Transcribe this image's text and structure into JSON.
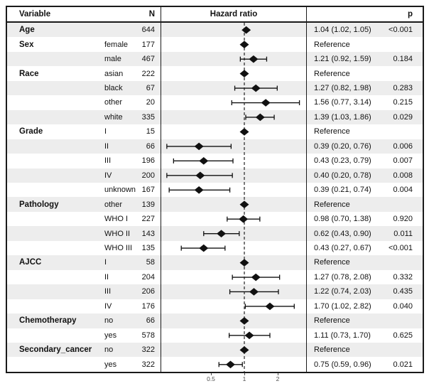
{
  "colors": {
    "row_stripe": "#ededed",
    "border": "#1a1a1a",
    "marker": "#111111",
    "reference_line": "#333333",
    "axis_text": "#4d4d4d"
  },
  "chart_data": {
    "type": "scatter",
    "variant": "forest-plot",
    "title": "Hazard ratio",
    "x_scale": "log",
    "x_ticks": [
      "0.5",
      "1",
      "2"
    ],
    "x_tick_values": [
      0.5,
      1,
      2
    ],
    "reference_line": 1,
    "legend": "none",
    "grid": false,
    "columns": {
      "variable": "Variable",
      "n": "N",
      "plot": "Hazard ratio",
      "p": "p"
    },
    "rows": [
      {
        "variable": "Age",
        "subgroup": "",
        "n": "644",
        "hr": 1.04,
        "lo": 1.02,
        "hi": 1.05,
        "label": "1.04 (1.02, 1.05)",
        "p": "<0.001",
        "is_reference": false
      },
      {
        "variable": "Sex",
        "subgroup": "female",
        "n": "177",
        "hr": 1,
        "lo": 1,
        "hi": 1,
        "label": "Reference",
        "p": "",
        "is_reference": true
      },
      {
        "variable": "",
        "subgroup": "male",
        "n": "467",
        "hr": 1.21,
        "lo": 0.92,
        "hi": 1.59,
        "label": "1.21 (0.92, 1.59)",
        "p": "0.184",
        "is_reference": false
      },
      {
        "variable": "Race",
        "subgroup": "asian",
        "n": "222",
        "hr": 1,
        "lo": 1,
        "hi": 1,
        "label": "Reference",
        "p": "",
        "is_reference": true
      },
      {
        "variable": "",
        "subgroup": "black",
        "n": "67",
        "hr": 1.27,
        "lo": 0.82,
        "hi": 1.98,
        "label": "1.27 (0.82, 1.98)",
        "p": "0.283",
        "is_reference": false
      },
      {
        "variable": "",
        "subgroup": "other",
        "n": "20",
        "hr": 1.56,
        "lo": 0.77,
        "hi": 3.14,
        "label": "1.56 (0.77, 3.14)",
        "p": "0.215",
        "is_reference": false
      },
      {
        "variable": "",
        "subgroup": "white",
        "n": "335",
        "hr": 1.39,
        "lo": 1.03,
        "hi": 1.86,
        "label": "1.39 (1.03, 1.86)",
        "p": "0.029",
        "is_reference": false
      },
      {
        "variable": "Grade",
        "subgroup": "I",
        "n": "15",
        "hr": 1,
        "lo": 1,
        "hi": 1,
        "label": "Reference",
        "p": "",
        "is_reference": true
      },
      {
        "variable": "",
        "subgroup": "II",
        "n": "66",
        "hr": 0.39,
        "lo": 0.2,
        "hi": 0.76,
        "label": "0.39 (0.20, 0.76)",
        "p": "0.006",
        "is_reference": false
      },
      {
        "variable": "",
        "subgroup": "III",
        "n": "196",
        "hr": 0.43,
        "lo": 0.23,
        "hi": 0.79,
        "label": "0.43 (0.23, 0.79)",
        "p": "0.007",
        "is_reference": false
      },
      {
        "variable": "",
        "subgroup": "IV",
        "n": "200",
        "hr": 0.4,
        "lo": 0.2,
        "hi": 0.78,
        "label": "0.40 (0.20, 0.78)",
        "p": "0.008",
        "is_reference": false
      },
      {
        "variable": "",
        "subgroup": "unknown",
        "n": "167",
        "hr": 0.39,
        "lo": 0.21,
        "hi": 0.74,
        "label": "0.39 (0.21, 0.74)",
        "p": "0.004",
        "is_reference": false
      },
      {
        "variable": "Pathology",
        "subgroup": "other",
        "n": "139",
        "hr": 1,
        "lo": 1,
        "hi": 1,
        "label": "Reference",
        "p": "",
        "is_reference": true
      },
      {
        "variable": "",
        "subgroup": "WHO I",
        "n": "227",
        "hr": 0.98,
        "lo": 0.7,
        "hi": 1.38,
        "label": "0.98 (0.70, 1.38)",
        "p": "0.920",
        "is_reference": false
      },
      {
        "variable": "",
        "subgroup": "WHO II",
        "n": "143",
        "hr": 0.62,
        "lo": 0.43,
        "hi": 0.9,
        "label": "0.62 (0.43, 0.90)",
        "p": "0.011",
        "is_reference": false
      },
      {
        "variable": "",
        "subgroup": "WHO III",
        "n": "135",
        "hr": 0.43,
        "lo": 0.27,
        "hi": 0.67,
        "label": "0.43 (0.27, 0.67)",
        "p": "<0.001",
        "is_reference": false
      },
      {
        "variable": "AJCC",
        "subgroup": "I",
        "n": "58",
        "hr": 1,
        "lo": 1,
        "hi": 1,
        "label": "Reference",
        "p": "",
        "is_reference": true
      },
      {
        "variable": "",
        "subgroup": "II",
        "n": "204",
        "hr": 1.27,
        "lo": 0.78,
        "hi": 2.08,
        "label": "1.27 (0.78, 2.08)",
        "p": "0.332",
        "is_reference": false
      },
      {
        "variable": "",
        "subgroup": "III",
        "n": "206",
        "hr": 1.22,
        "lo": 0.74,
        "hi": 2.03,
        "label": "1.22 (0.74, 2.03)",
        "p": "0.435",
        "is_reference": false
      },
      {
        "variable": "",
        "subgroup": "IV",
        "n": "176",
        "hr": 1.7,
        "lo": 1.02,
        "hi": 2.82,
        "label": "1.70 (1.02, 2.82)",
        "p": "0.040",
        "is_reference": false
      },
      {
        "variable": "Chemotherapy",
        "subgroup": "no",
        "n": "66",
        "hr": 1,
        "lo": 1,
        "hi": 1,
        "label": "Reference",
        "p": "",
        "is_reference": true
      },
      {
        "variable": "",
        "subgroup": "yes",
        "n": "578",
        "hr": 1.11,
        "lo": 0.73,
        "hi": 1.7,
        "label": "1.11 (0.73, 1.70)",
        "p": "0.625",
        "is_reference": false
      },
      {
        "variable": "Secondary_cancer",
        "subgroup": "no",
        "n": "322",
        "hr": 1,
        "lo": 1,
        "hi": 1,
        "label": "Reference",
        "p": "",
        "is_reference": true
      },
      {
        "variable": "",
        "subgroup": "yes",
        "n": "322",
        "hr": 0.75,
        "lo": 0.59,
        "hi": 0.96,
        "label": "0.75 (0.59, 0.96)",
        "p": "0.021",
        "is_reference": false
      }
    ]
  }
}
